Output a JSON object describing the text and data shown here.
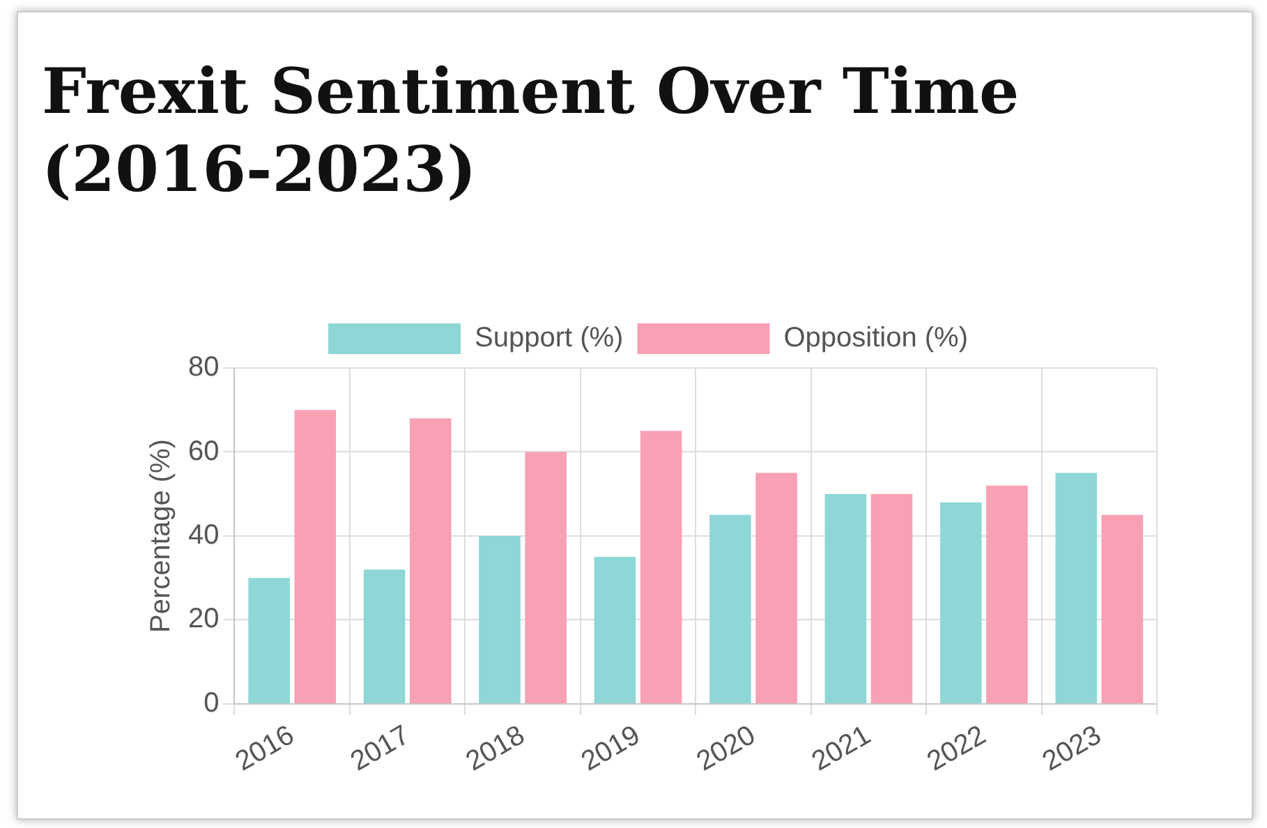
{
  "chart_data": {
    "type": "bar",
    "title": "Frexit Sentiment Over Time (2016-2023)",
    "ylabel": "Percentage (%)",
    "categories": [
      "2016",
      "2017",
      "2018",
      "2019",
      "2020",
      "2021",
      "2022",
      "2023"
    ],
    "series": [
      {
        "name": "Support (%)",
        "color": "#8fd6d6",
        "values": [
          30,
          32,
          40,
          35,
          45,
          50,
          48,
          55
        ]
      },
      {
        "name": "Opposition (%)",
        "color": "#f8a0b4",
        "values": [
          70,
          68,
          60,
          65,
          55,
          50,
          52,
          45
        ]
      }
    ],
    "ylim": [
      0,
      80
    ],
    "yticks": [
      0,
      20,
      40,
      60,
      80
    ],
    "grid": true,
    "legend": "top"
  }
}
